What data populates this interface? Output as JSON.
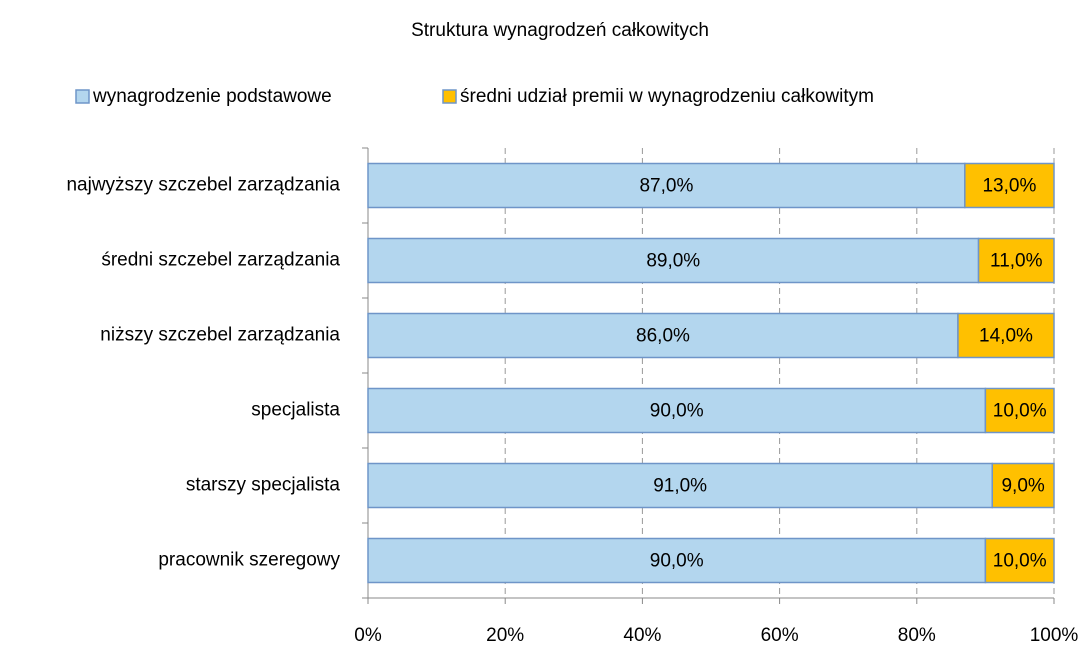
{
  "chart_data": {
    "type": "stacked_barh",
    "title": "Struktura wynagrodzeń całkowitych",
    "categories": [
      "najwyższy szczebel zarządzania",
      "średni szczebel zarządzania",
      "niższy szczebel zarządzania",
      "specjalista",
      "starszy specjalista",
      "pracownik szeregowy"
    ],
    "series": [
      {
        "name": "wynagrodzenie podstawowe",
        "color": "#b3d6ee",
        "values": [
          87,
          89,
          86,
          90,
          91,
          90
        ],
        "value_labels": [
          "87,0%",
          "89,0%",
          "86,0%",
          "90,0%",
          "91,0%",
          "90,0%"
        ]
      },
      {
        "name": "średni udział premii w wynagrodzeniu całkowitym",
        "color": "#ffc000",
        "values": [
          13,
          11,
          14,
          10,
          9,
          10
        ],
        "value_labels": [
          "13,0%",
          "11,0%",
          "14,0%",
          "10,0%",
          "9,0%",
          "10,0%"
        ]
      }
    ],
    "xlim": [
      0,
      100
    ],
    "xticks": [
      {
        "value": 0,
        "label": "0%"
      },
      {
        "value": 20,
        "label": "20%"
      },
      {
        "value": 40,
        "label": "40%"
      },
      {
        "value": 60,
        "label": "60%"
      },
      {
        "value": 80,
        "label": "80%"
      },
      {
        "value": 100,
        "label": "100%"
      }
    ],
    "grid": true,
    "legend": "top"
  }
}
